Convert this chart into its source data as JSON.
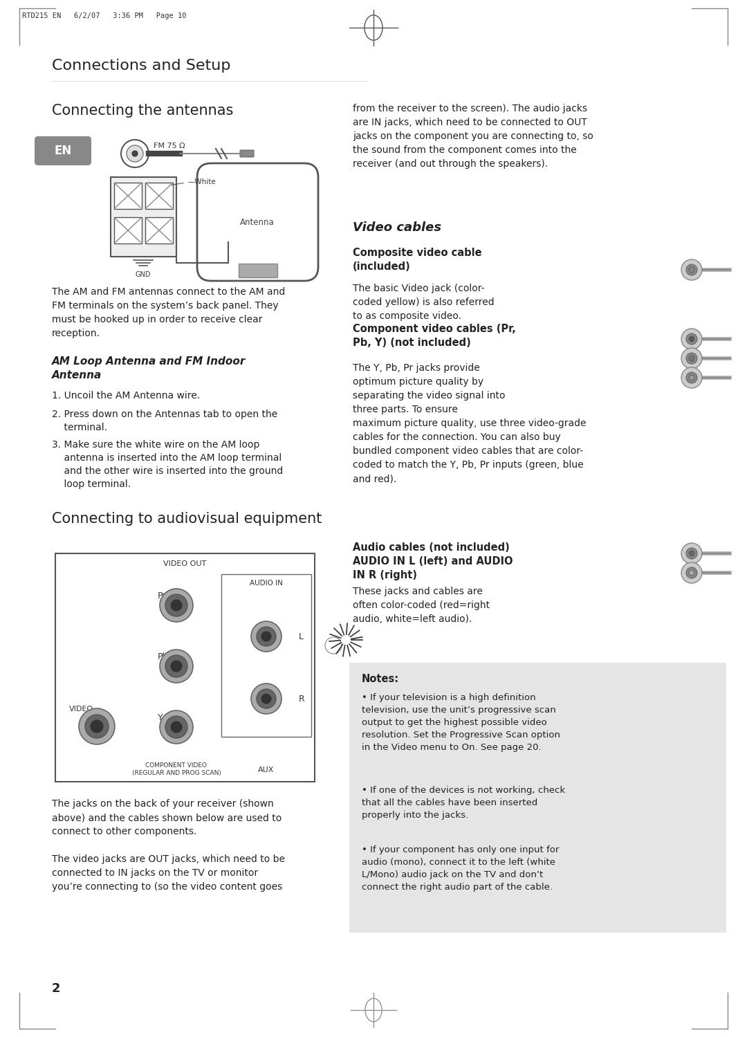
{
  "bg_color": "#ffffff",
  "header_text": "RTD215 EN   6/2/07   3:36 PM   Page 10",
  "page_title": "Connections and Setup",
  "section1_title": "Connecting the antennas",
  "en_badge": "EN",
  "right_col_intro": "from the receiver to the screen). The audio jacks\nare IN jacks, which need to be connected to OUT\njacks on the component you are connecting to, so\nthe sound from the component comes into the\nreceiver (and out through the speakers).",
  "antenna_desc": "The AM and FM antennas connect to the AM and\nFM terminals on the system’s back panel. They\nmust be hooked up in order to receive clear\nreception.",
  "am_fm_title": "AM Loop Antenna and FM Indoor\nAntenna",
  "am_fm_step1": "1. Uncoil the AM Antenna wire.",
  "am_fm_step2": "2. Press down on the Antennas tab to open the\n    terminal.",
  "am_fm_step3": "3. Make sure the white wire on the AM loop\n    antenna is inserted into the AM loop terminal\n    and the other wire is inserted into the ground\n    loop terminal.",
  "section2_title": "Connecting to audiovisual equipment",
  "video_cables_title": "Video cables",
  "composite_title": "Composite video cable\n(included)",
  "composite_desc": "The basic Video jack (color-\ncoded yellow) is also referred\nto as composite video.",
  "component_title": "Component video cables (Pr,\nPb, Y) (not included)",
  "component_desc": "The Y, Pb, Pr jacks provide\noptimum picture quality by\nseparating the video signal into\nthree parts. To ensure\nmaximum picture quality, use three video-grade\ncables for the connection. You can also buy\nbundled component video cables that are color-\ncoded to match the Y, Pb, Pr inputs (green, blue\nand red).",
  "audio_title": "Audio cables (not included)\nAUDIO IN L (left) and AUDIO\nIN R (right)",
  "audio_desc": "These jacks and cables are\noften color-coded (red=right\naudio, white=left audio).",
  "notes_title": "Notes:",
  "note1": "If your television is a high definition\ntelevision, use the unit’s progressive scan\noutput to get the highest possible video\nresolution. Set the Progressive Scan option\nin the Video menu to On. See page 20.",
  "note2": "If one of the devices is not working, check\nthat all the cables have been inserted\nproperly into the jacks.",
  "note3": "If your component has only one input for\naudio (mono), connect it to the left (white\nL/Mono) audio jack on the TV and don’t\nconnect the right audio part of the cable.",
  "av_desc1": "The jacks on the back of your receiver (shown\nabove) and the cables shown below are used to\nconnect to other components.",
  "av_desc2": "The video jacks are OUT jacks, which need to be\nconnected to IN jacks on the TV or monitor\nyou’re connecting to (so the video content goes",
  "page_number": "2"
}
